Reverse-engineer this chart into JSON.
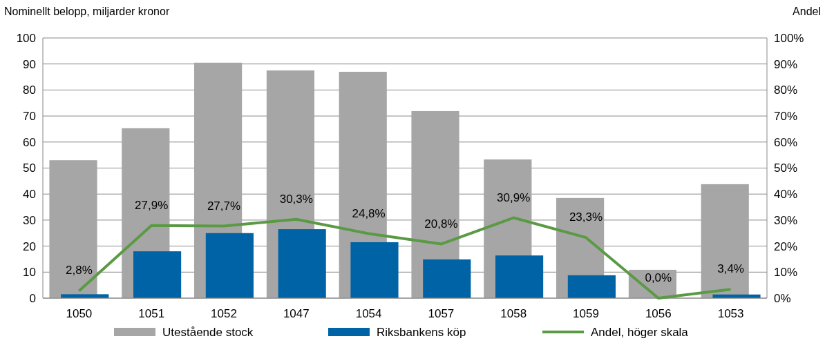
{
  "chart_data": {
    "type": "bar",
    "ylabel": "Nominellt belopp, miljarder kronor",
    "y2label": "Andel",
    "categories": [
      "1050",
      "1051",
      "1052",
      "1047",
      "1054",
      "1057",
      "1058",
      "1059",
      "1056",
      "1053"
    ],
    "series": [
      {
        "name": "Utestående stock",
        "color": "#a6a6a6",
        "values": [
          53,
          65.3,
          90.5,
          87.5,
          87,
          71.9,
          53.3,
          38.5,
          10.9,
          43.8
        ]
      },
      {
        "name": "Riksbankens köp",
        "color": "#0063a6",
        "values": [
          1.5,
          18,
          25,
          26.5,
          21.5,
          14.9,
          16.4,
          8.8,
          0,
          1.4
        ]
      },
      {
        "name": "Andel, höger skala",
        "type": "line",
        "axis": "y2",
        "color": "#5b9a45",
        "marker": "none",
        "values": [
          2.8,
          27.9,
          27.7,
          30.3,
          24.8,
          20.8,
          30.9,
          23.3,
          0,
          3.4
        ],
        "value_labels": [
          "2,8%",
          "27,9%",
          "27,7%",
          "30,3%",
          "24,8%",
          "20,8%",
          "30,9%",
          "23,3%",
          "0,0%",
          "3,4%"
        ]
      }
    ],
    "ylim": [
      0,
      100
    ],
    "yticks": [
      0,
      10,
      20,
      30,
      40,
      50,
      60,
      70,
      80,
      90,
      100
    ],
    "y2lim": [
      0,
      100
    ],
    "y2ticks": [
      {
        "value": 0,
        "label": "0%"
      },
      {
        "value": 10,
        "label": "10%"
      },
      {
        "value": 20,
        "label": "20%"
      },
      {
        "value": 30,
        "label": "30%"
      },
      {
        "value": 40,
        "label": "40%"
      },
      {
        "value": 50,
        "label": "50%"
      },
      {
        "value": 60,
        "label": "60%"
      },
      {
        "value": 70,
        "label": "70%"
      },
      {
        "value": 80,
        "label": "80%"
      },
      {
        "value": 90,
        "label": "90%"
      },
      {
        "value": 100,
        "label": "100%"
      }
    ],
    "grid": "y",
    "legend": "bottom"
  }
}
